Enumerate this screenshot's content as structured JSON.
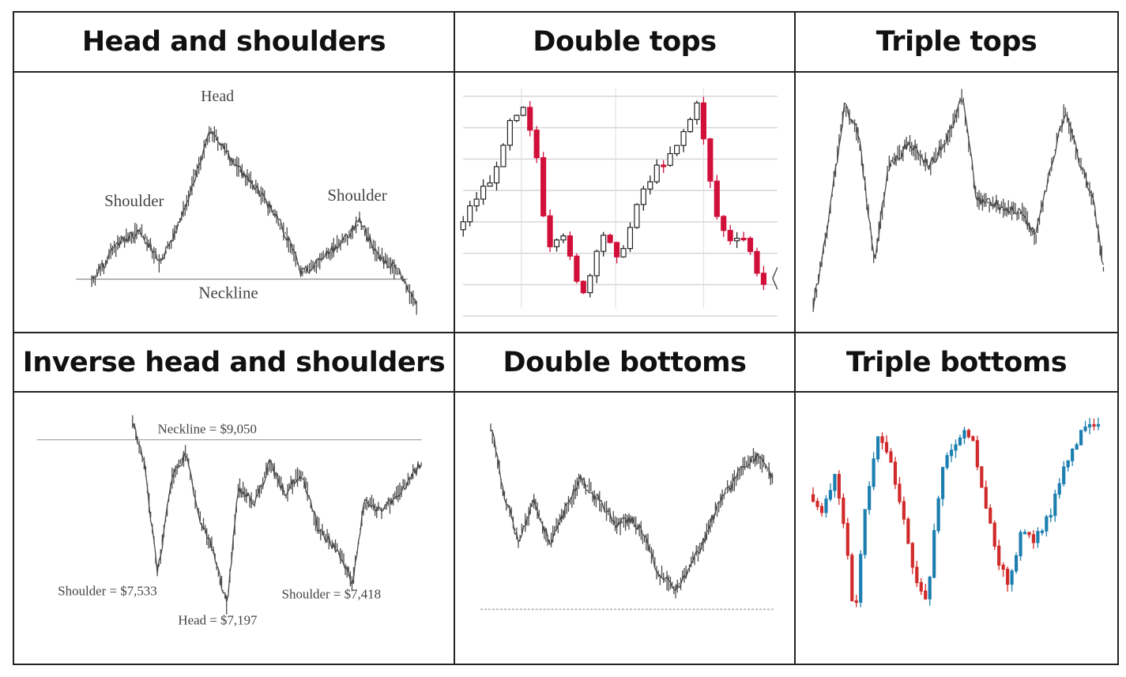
{
  "panels": [
    {
      "title": "Head and shoulders",
      "labels": {
        "head": "Head",
        "left_shoulder": "Shoulder",
        "right_shoulder": "Shoulder",
        "neckline": "Neckline"
      }
    },
    {
      "title": "Double tops"
    },
    {
      "title": "Triple tops"
    },
    {
      "title": "Inverse head and shoulders",
      "labels": {
        "neckline": "Neckline = $9,050",
        "left_shoulder": "Shoulder = $7,533",
        "head": "Head = $7,197",
        "right_shoulder": "Shoulder = $7,418"
      }
    },
    {
      "title": "Double bottoms"
    },
    {
      "title": "Triple bottoms"
    }
  ],
  "colors": {
    "bull": "#d1103a",
    "bear": "#222222",
    "blue": "#1c7fb0",
    "red": "#d12a2a",
    "grid": "#d6d6d6",
    "price": "#4a4a4a"
  }
}
